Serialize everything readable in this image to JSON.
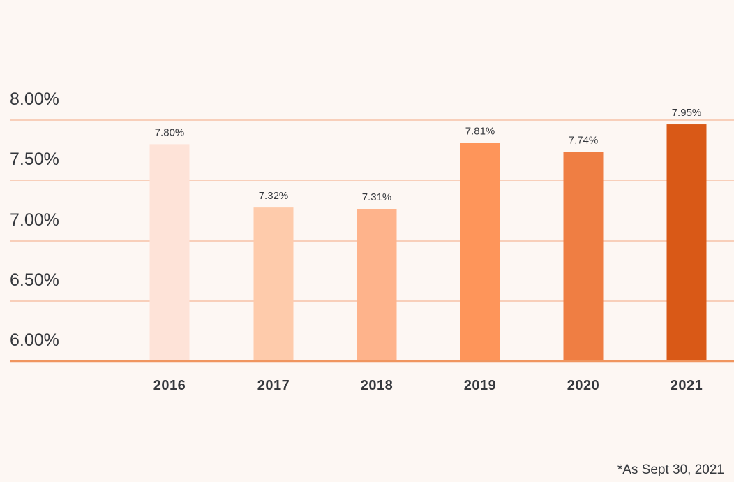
{
  "chart_data": {
    "type": "bar",
    "title": "",
    "xlabel": "",
    "ylabel": "",
    "categories": [
      "2016",
      "2017",
      "2018",
      "2019",
      "2020",
      "2021"
    ],
    "values": [
      7.8,
      7.32,
      7.31,
      7.81,
      7.74,
      7.95
    ],
    "data_labels": [
      "7.80%",
      "7.32%",
      "7.31%",
      "7.81%",
      "7.74%",
      "7.95%"
    ],
    "y_ticks": [
      6.0,
      6.5,
      7.0,
      7.5,
      8.0
    ],
    "y_tick_labels": [
      "6.00%",
      "6.50%",
      "7.00%",
      "7.50%",
      "8.00%"
    ],
    "ylim": [
      6.0,
      8.0
    ],
    "grid": true,
    "legend": "none",
    "colors": {
      "bars": [
        "#fee3d8",
        "#fecbab",
        "#feb38b",
        "#fe955a",
        "#ef7e43",
        "#d95917"
      ],
      "grid": "#f6c2a8",
      "baseline": "#f0955f",
      "text": "#35383d",
      "background": "#fdf7f3"
    }
  },
  "footnote": "*As Sept 30, 2021"
}
